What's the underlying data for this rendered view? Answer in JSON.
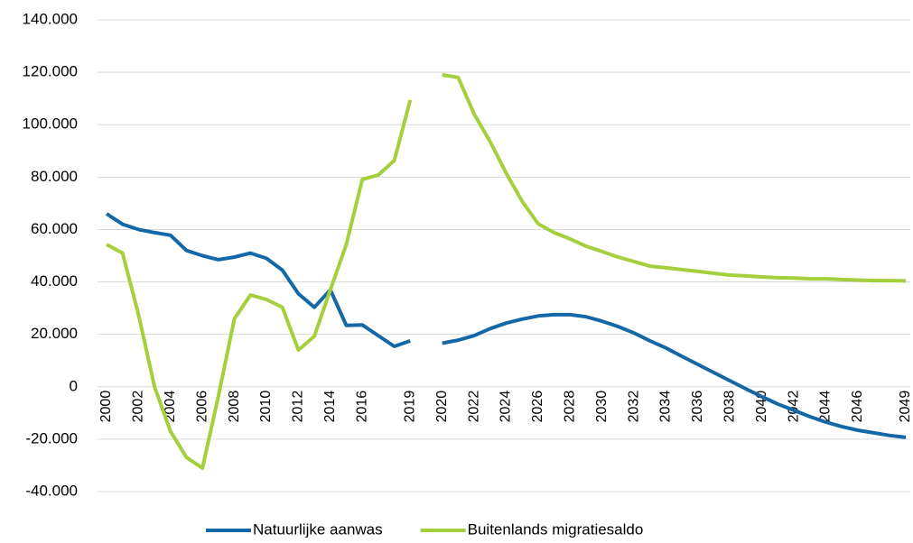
{
  "chart_data": {
    "type": "line",
    "categories": [
      "2000",
      null,
      "2002",
      null,
      "2004",
      null,
      "2006",
      null,
      "2008",
      null,
      "2010",
      null,
      "2012",
      null,
      "2014",
      null,
      "2016",
      null,
      null,
      "2019",
      null,
      "2020",
      null,
      "2022",
      null,
      "2024",
      null,
      "2026",
      null,
      "2028",
      null,
      "2030",
      null,
      "2032",
      null,
      "2034",
      null,
      "2036",
      null,
      "2038",
      null,
      "2040",
      null,
      "2042",
      null,
      "2044",
      null,
      "2046",
      null,
      null,
      "2049"
    ],
    "series": [
      {
        "name": "Natuurlijke aanwas",
        "color": "#1468a8",
        "values": [
          66000,
          62000,
          60000,
          58800,
          57800,
          52000,
          50000,
          48500,
          49500,
          51000,
          49000,
          44500,
          35500,
          30300,
          37000,
          23400,
          23600,
          19500,
          15400,
          17500,
          null,
          16600,
          17800,
          19500,
          22200,
          24300,
          25800,
          27000,
          27500,
          27500,
          26700,
          25000,
          23000,
          20500,
          17500,
          14800,
          11600,
          8500,
          5400,
          2300,
          -800,
          -3800,
          -6600,
          -9000,
          -11400,
          -13500,
          -15200,
          -16600,
          -17600,
          -18600,
          -19300
        ]
      },
      {
        "name": "Buitenlands migratiesaldo",
        "color": "#a5cf3c",
        "values": [
          54300,
          51000,
          27500,
          0,
          -17000,
          -27000,
          -31000,
          -3500,
          26000,
          35000,
          33300,
          30300,
          14000,
          19300,
          37000,
          54300,
          79100,
          80800,
          86300,
          109400,
          null,
          119000,
          118000,
          104000,
          93500,
          81500,
          70800,
          62200,
          58800,
          56400,
          53600,
          51600,
          49500,
          47800,
          46000,
          45400,
          44700,
          44000,
          43300,
          42600,
          42300,
          41900,
          41600,
          41500,
          41200,
          41200,
          40900,
          40700,
          40500,
          40500,
          40400
        ]
      }
    ],
    "ylim": [
      -40000,
      140000
    ],
    "yticks": [
      {
        "value": -40000,
        "label": "-40.000"
      },
      {
        "value": -20000,
        "label": "-20.000"
      },
      0,
      {
        "value": 20000,
        "label": "20.000"
      },
      {
        "value": 40000,
        "label": "40.000"
      },
      {
        "value": 60000,
        "label": "60.000"
      },
      {
        "value": 80000,
        "label": "80.000"
      },
      {
        "value": 100000,
        "label": "100.000"
      },
      {
        "value": 120000,
        "label": "120.000"
      },
      {
        "value": 140000,
        "label": "140.000"
      }
    ],
    "grid": true,
    "legend": "bottom"
  }
}
